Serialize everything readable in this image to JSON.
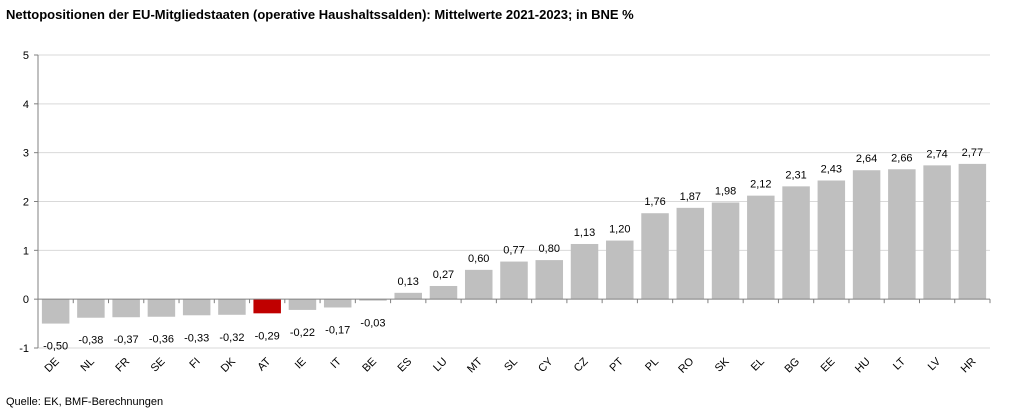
{
  "chart_data": {
    "type": "bar",
    "title": "Nettopositionen der EU-Mitgliedstaaten (operative Haushaltssalden): Mittelwerte 2021-2023; in BNE %",
    "xlabel": "",
    "ylabel": "",
    "ylim": [
      -1,
      5
    ],
    "yticks": [
      "-1",
      "0",
      "1",
      "2",
      "3",
      "4",
      "5"
    ],
    "grid": true,
    "categories": [
      "DE",
      "NL",
      "FR",
      "SE",
      "FI",
      "DK",
      "AT",
      "IE",
      "IT",
      "BE",
      "ES",
      "LU",
      "MT",
      "SL",
      "CY",
      "CZ",
      "PT",
      "PL",
      "RO",
      "SK",
      "EL",
      "BG",
      "EE",
      "HU",
      "LT",
      "LV",
      "HR"
    ],
    "values": [
      -0.5,
      -0.38,
      -0.37,
      -0.36,
      -0.33,
      -0.32,
      -0.29,
      -0.22,
      -0.17,
      -0.03,
      0.13,
      0.27,
      0.6,
      0.77,
      0.8,
      1.13,
      1.2,
      1.76,
      1.87,
      1.98,
      2.12,
      2.31,
      2.43,
      2.64,
      2.66,
      2.74,
      2.77
    ],
    "labels": [
      "-0,50",
      "-0,38",
      "-0,37",
      "-0,36",
      "-0,33",
      "-0,32",
      "-0,29",
      "-0,22",
      "-0,17",
      "-0,03",
      "0,13",
      "0,27",
      "0,60",
      "0,77",
      "0,80",
      "1,13",
      "1,20",
      "1,76",
      "1,87",
      "1,98",
      "2,12",
      "2,31",
      "2,43",
      "2,64",
      "2,66",
      "2,74",
      "2,77"
    ],
    "highlight": "AT",
    "colors": {
      "bar": "#bfbfbf",
      "highlight": "#c00000",
      "grid": "#d9d9d9",
      "axis": "#808080"
    }
  },
  "footer": {
    "source": "Quelle: EK, BMF-Berechnungen"
  }
}
